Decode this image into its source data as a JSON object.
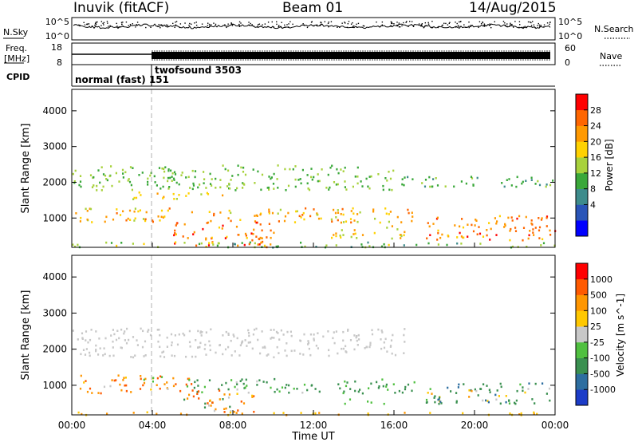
{
  "header": {
    "station": "Inuvik (fitACF)",
    "beam": "Beam 01",
    "date": "14/Aug/2015"
  },
  "panels": {
    "nsky_label": "N.Sky",
    "nsearch_label": "N.Search",
    "noise_ticks": [
      "10^5",
      "10^0"
    ],
    "freq_label_line1": "Freq.",
    "freq_label_line2": "[MHz]",
    "freq_ticks": [
      "18",
      "8"
    ],
    "nave_label": "Nave",
    "nave_ticks": [
      "60",
      "0"
    ],
    "cpid_label": "CPID",
    "cpid_modes": [
      {
        "text": "normal (fast) 151",
        "start_hour": 0
      },
      {
        "text": "twofsound 3503",
        "start_hour": 4
      }
    ]
  },
  "axes": {
    "ylabel": "Slant Range [km]",
    "yticks": [
      1000,
      2000,
      3000,
      4000
    ],
    "ylim": [
      180,
      4600
    ],
    "xlabel": "Time UT",
    "xticks": [
      "00:00",
      "04:00",
      "08:00",
      "12:00",
      "16:00",
      "20:00",
      "00:00"
    ],
    "xlim_hours": [
      0,
      24
    ]
  },
  "power_scale": {
    "label": "Power [dB]",
    "ticks": [
      "28",
      "24",
      "20",
      "16",
      "12",
      "8",
      "4"
    ],
    "colors": [
      "#0000ff",
      "#2a55b8",
      "#3e8c8c",
      "#3aa83a",
      "#a8d23c",
      "#ffd200",
      "#ff9900",
      "#ff6600",
      "#ff0000"
    ]
  },
  "velocity_scale": {
    "label": "Velocity [m s^-1]",
    "ticks": [
      "1000",
      "500",
      "100",
      "25",
      "-25",
      "-100",
      "-500",
      "-1000"
    ],
    "colors": [
      "#1c3cc8",
      "#2d6ea0",
      "#3a9050",
      "#50c040",
      "#c8c8c8",
      "#ffc800",
      "#ff9600",
      "#ff5a00",
      "#ff0000"
    ]
  },
  "chart_data": {
    "type": "heatmap",
    "x_unit": "hours UT",
    "y_unit": "km",
    "power_regions": [
      {
        "t": [
          0,
          16
        ],
        "r": [
          1800,
          2500
        ],
        "level": 12,
        "spread": 4
      },
      {
        "t": [
          16,
          24
        ],
        "r": [
          1900,
          2200
        ],
        "level": 10,
        "spread": 3
      },
      {
        "t": [
          0,
          17
        ],
        "r": [
          900,
          1300
        ],
        "level": 20,
        "spread": 6
      },
      {
        "t": [
          3,
          8
        ],
        "r": [
          1550,
          1750
        ],
        "level": 18,
        "spread": 4
      },
      {
        "t": [
          5,
          10
        ],
        "r": [
          200,
          900
        ],
        "level": 24,
        "spread": 6
      },
      {
        "t": [
          12.5,
          16.5
        ],
        "r": [
          450,
          800
        ],
        "level": 18,
        "spread": 6
      },
      {
        "t": [
          17.5,
          24
        ],
        "r": [
          400,
          1100
        ],
        "level": 24,
        "spread": 6
      },
      {
        "t": [
          0,
          24
        ],
        "r": [
          200,
          350
        ],
        "level": 12,
        "spread": 5
      }
    ],
    "velocity_regions": [
      {
        "t": [
          0,
          16.5
        ],
        "r": [
          1800,
          2600
        ],
        "vel": 0,
        "spread": 20
      },
      {
        "t": [
          0,
          6
        ],
        "r": [
          800,
          1300
        ],
        "vel": 300,
        "spread": 400
      },
      {
        "t": [
          6,
          17
        ],
        "r": [
          800,
          1200
        ],
        "vel": -200,
        "spread": 200
      },
      {
        "t": [
          5.5,
          9
        ],
        "r": [
          250,
          900
        ],
        "vel": 300,
        "spread": 500
      },
      {
        "t": [
          17.5,
          24
        ],
        "r": [
          500,
          1100
        ],
        "vel": -250,
        "spread": 400
      },
      {
        "t": [
          13.5,
          15.5
        ],
        "r": [
          500,
          650
        ],
        "vel": -80,
        "spread": 20
      },
      {
        "t": [
          0,
          24
        ],
        "r": [
          200,
          280
        ],
        "vel": 100,
        "spread": 50
      }
    ]
  }
}
